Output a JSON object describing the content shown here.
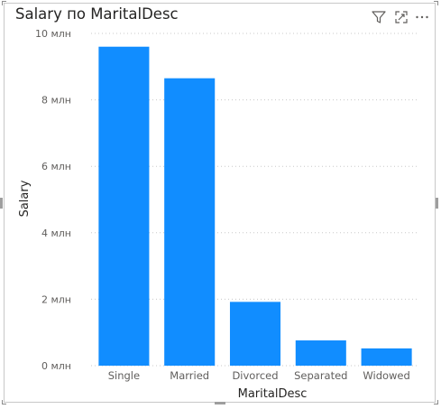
{
  "header": {
    "title": "Salary по MaritalDesc",
    "icons": [
      "filter-icon",
      "focus-mode-icon",
      "more-options-icon"
    ]
  },
  "colors": {
    "bar": "#118DFF",
    "grid": "#c8c8c8",
    "axis_text": "#605E5C",
    "title_text": "#252423"
  },
  "chart_data": {
    "type": "bar",
    "title": "Salary по MaritalDesc",
    "xlabel": "MaritalDesc",
    "ylabel": "Salary",
    "categories": [
      "Single",
      "Married",
      "Divorced",
      "Separated",
      "Widowed"
    ],
    "values": [
      9600000,
      8650000,
      1920000,
      760000,
      520000
    ],
    "ylim": [
      0,
      10000000
    ],
    "yticks": [
      {
        "value": 0,
        "label": "0 млн"
      },
      {
        "value": 2000000,
        "label": "2 млн"
      },
      {
        "value": 4000000,
        "label": "4 млн"
      },
      {
        "value": 6000000,
        "label": "6 млн"
      },
      {
        "value": 8000000,
        "label": "8 млн"
      },
      {
        "value": 10000000,
        "label": "10 млн"
      }
    ],
    "grid": true,
    "legend": "none"
  }
}
